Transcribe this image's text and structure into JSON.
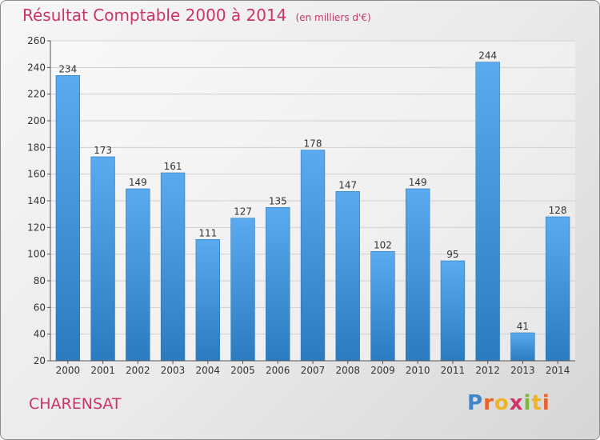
{
  "header": {
    "title": "Résultat Comptable 2000 à 2014",
    "unit": "(en milliers d'€)"
  },
  "footer": {
    "commune": "CHARENSAT",
    "logo_text": "Proxiti"
  },
  "colors": {
    "title": "#cc3366",
    "bar_light": "#5aaaf0",
    "bar_dark": "#2a7bbf",
    "grid": "#cfcfcf"
  },
  "chart_data": {
    "type": "bar",
    "title": "Résultat Comptable 2000 à 2014",
    "subtitle": "(en milliers d'€)",
    "xlabel": "",
    "ylabel": "",
    "categories": [
      "2000",
      "2001",
      "2002",
      "2003",
      "2004",
      "2005",
      "2006",
      "2007",
      "2008",
      "2009",
      "2010",
      "2011",
      "2012",
      "2013",
      "2014"
    ],
    "values": [
      234,
      173,
      149,
      161,
      111,
      127,
      135,
      178,
      147,
      102,
      149,
      95,
      244,
      41,
      128
    ],
    "ylim": [
      20,
      260
    ],
    "yticks": [
      20,
      40,
      60,
      80,
      100,
      120,
      140,
      160,
      180,
      200,
      220,
      240,
      260
    ],
    "grid": true,
    "data_labels": true
  }
}
